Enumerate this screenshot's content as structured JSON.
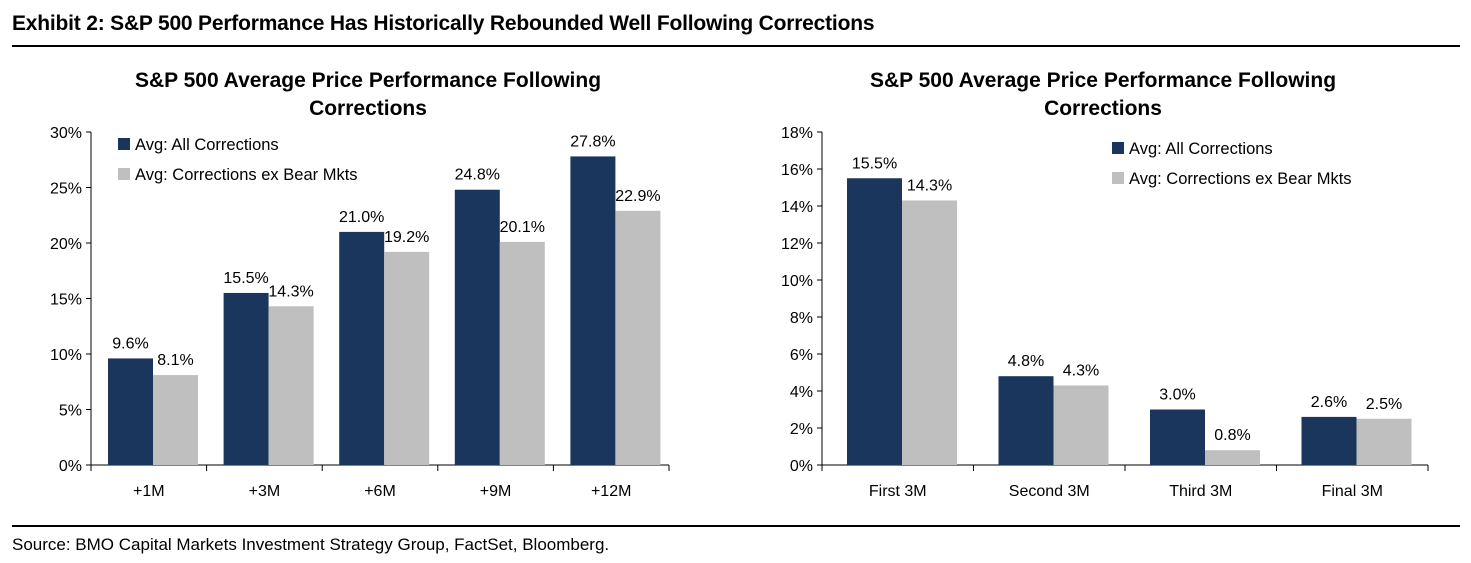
{
  "exhibit_title": "Exhibit 2: S&P 500 Performance Has Historically Rebounded Well Following Corrections",
  "source": "Source: BMO Capital Markets Investment Strategy Group, FactSet, Bloomberg.",
  "colors": {
    "series1": "#1b365d",
    "series2": "#bfbfbf"
  },
  "chart_data": [
    {
      "type": "bar",
      "title": "S&P 500 Average Price Performance Following Corrections",
      "title_lines": [
        "S&P 500 Average Price Performance Following",
        "Corrections"
      ],
      "categories": [
        "+1M",
        "+3M",
        "+6M",
        "+9M",
        "+12M"
      ],
      "series": [
        {
          "name": "Avg: All Corrections",
          "values": [
            9.6,
            15.5,
            21.0,
            24.8,
            27.8
          ],
          "labels": [
            "9.6%",
            "15.5%",
            "21.0%",
            "24.8%",
            "27.8%"
          ]
        },
        {
          "name": "Avg: Corrections ex Bear Mkts",
          "values": [
            8.1,
            14.3,
            19.2,
            20.1,
            22.9
          ],
          "labels": [
            "8.1%",
            "14.3%",
            "19.2%",
            "20.1%",
            "22.9%"
          ]
        }
      ],
      "ylim": [
        0,
        30
      ],
      "yticks": [
        0,
        5,
        10,
        15,
        20,
        25,
        30
      ],
      "ytick_labels": [
        "0%",
        "5%",
        "10%",
        "15%",
        "20%",
        "25%",
        "30%"
      ],
      "xlabel": "",
      "ylabel": "",
      "grid": false,
      "legend": "top-left"
    },
    {
      "type": "bar",
      "title": "S&P 500 Average Price Performance Following Corrections",
      "title_lines": [
        "S&P 500 Average Price Performance Following",
        "Corrections"
      ],
      "categories": [
        "First 3M",
        "Second 3M",
        "Third 3M",
        "Final 3M"
      ],
      "series": [
        {
          "name": "Avg: All Corrections",
          "values": [
            15.5,
            4.8,
            3.0,
            2.6
          ],
          "labels": [
            "15.5%",
            "4.8%",
            "3.0%",
            "2.6%"
          ]
        },
        {
          "name": "Avg: Corrections ex Bear Mkts",
          "values": [
            14.3,
            4.3,
            0.8,
            2.5
          ],
          "labels": [
            "14.3%",
            "4.3%",
            "0.8%",
            "2.5%"
          ]
        }
      ],
      "ylim": [
        0,
        18
      ],
      "yticks": [
        0,
        2,
        4,
        6,
        8,
        10,
        12,
        14,
        16,
        18
      ],
      "ytick_labels": [
        "0%",
        "2%",
        "4%",
        "6%",
        "8%",
        "10%",
        "12%",
        "14%",
        "16%",
        "18%"
      ],
      "xlabel": "",
      "ylabel": "",
      "grid": false,
      "legend": "top-right"
    }
  ]
}
